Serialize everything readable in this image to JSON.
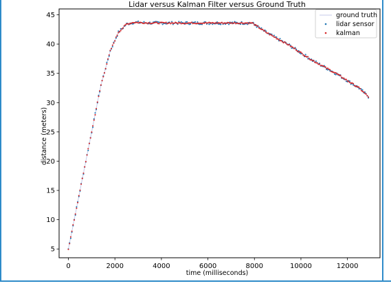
{
  "chart_data": {
    "type": "scatter",
    "title": "Lidar versus Kalman Filter versus Ground Truth",
    "xlabel": "time (milliseconds)",
    "ylabel": "distance (meters)",
    "xlim": [
      -400,
      13400
    ],
    "ylim": [
      3.5,
      46
    ],
    "xticks": [
      0,
      2000,
      4000,
      6000,
      8000,
      10000,
      12000
    ],
    "yticks": [
      5,
      10,
      15,
      20,
      25,
      30,
      35,
      40,
      45
    ],
    "legend_position": "top-right",
    "colors": {
      "ground_truth": "#c5cae9",
      "lidar": "#1f77b4",
      "kalman": "#d62728"
    },
    "series": [
      {
        "name": "ground truth",
        "style": "line"
      },
      {
        "name": "lidar sensor",
        "style": "points"
      },
      {
        "name": "kalman",
        "style": "points"
      }
    ],
    "ground_truth_curve": {
      "x": [
        0,
        300,
        800,
        1400,
        1800,
        2150,
        2500,
        2800,
        3500,
        5000,
        6500,
        7900,
        8500,
        9500,
        10500,
        11500,
        12500,
        12900
      ],
      "y": [
        5.0,
        11.0,
        21.0,
        33.0,
        38.8,
        42.0,
        43.4,
        43.7,
        43.6,
        43.6,
        43.6,
        43.6,
        42.0,
        39.8,
        37.2,
        35.0,
        32.5,
        31.0
      ]
    },
    "sampling": {
      "start": 0,
      "end": 12900,
      "step": 50
    }
  }
}
